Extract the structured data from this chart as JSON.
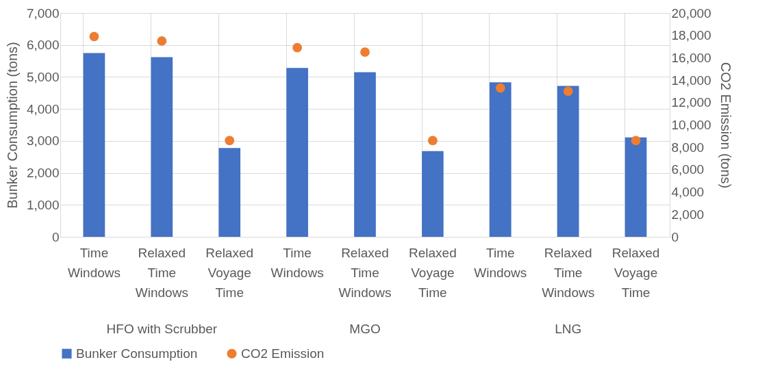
{
  "chart_data": {
    "type": "bar",
    "categories": [
      "Time Windows",
      "Relaxed Time Windows",
      "Relaxed Voyage Time",
      "Time Windows",
      "Relaxed Time Windows",
      "Relaxed Voyage Time",
      "Time Windows",
      "Relaxed Time Windows",
      "Relaxed Voyage Time"
    ],
    "series": [
      {
        "name": "Bunker Consumption",
        "type": "bar",
        "color": "#4472c4",
        "values": [
          5750,
          5620,
          2780,
          5280,
          5150,
          2680,
          4830,
          4720,
          3110
        ]
      },
      {
        "name": "CO2 Emission",
        "type": "scatter",
        "axis": "y2",
        "color": "#ed7d31",
        "values": [
          17900,
          17500,
          8600,
          16900,
          16500,
          8600,
          13300,
          13000,
          8600
        ]
      }
    ],
    "ylabel": "Bunker Consumption (tons)",
    "y2label": "CO2 Emission (tons)",
    "ylim": [
      0,
      7000
    ],
    "yticks": [
      0,
      {
        "value": 1000,
        "label": "1,000"
      },
      {
        "value": 2000,
        "label": "2,000"
      },
      {
        "value": 3000,
        "label": "3,000"
      },
      {
        "value": 4000,
        "label": "4,000"
      },
      {
        "value": 5000,
        "label": "5,000"
      },
      {
        "value": 6000,
        "label": "6,000"
      },
      {
        "value": 7000,
        "label": "7,000"
      }
    ],
    "y2lim": [
      0,
      20000
    ],
    "y2ticks": [
      0,
      {
        "value": 2000,
        "label": "2,000"
      },
      {
        "value": 4000,
        "label": "4,000"
      },
      {
        "value": 6000,
        "label": "6,000"
      },
      {
        "value": 8000,
        "label": "8,000"
      },
      {
        "value": 10000,
        "label": "10,000"
      },
      {
        "value": 12000,
        "label": "12,000"
      },
      {
        "value": 14000,
        "label": "14,000"
      },
      {
        "value": 16000,
        "label": "16,000"
      },
      {
        "value": 18000,
        "label": "18,000"
      },
      {
        "value": 20000,
        "label": "20,000"
      }
    ],
    "annotations": [
      "HFO with Scrubber",
      "MGO",
      "LNG"
    ],
    "grid": true,
    "legend": "bottom",
    "marker": "circle"
  }
}
